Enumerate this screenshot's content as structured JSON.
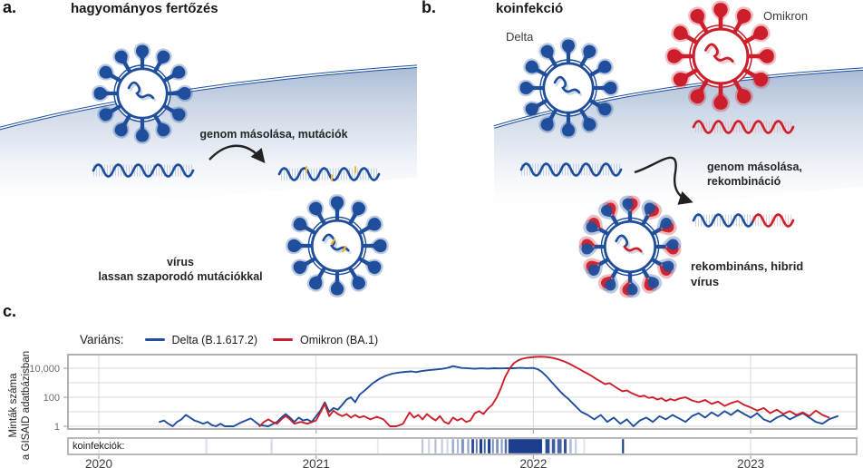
{
  "panel_a": {
    "label": "a.",
    "title": "hagyományos fertőzés",
    "annotation_copy": "genom másolása, mutációk",
    "result_line1": "vírus",
    "result_line2": "lassan szaporodó mutációkkal"
  },
  "panel_b": {
    "label": "b.",
    "title": "koinfekció",
    "virus1_label": "Delta",
    "virus2_label": "Omikron",
    "annotation_copy_line1": "genom másolása,",
    "annotation_copy_line2": "rekombináció",
    "result_line1": "rekombináns, hibrid",
    "result_line2": "vírus"
  },
  "panel_c": {
    "label": "c."
  },
  "colors": {
    "blue": "#1f4e9c",
    "red": "#cc1f2b",
    "membrane": "#1d4e9e",
    "membrane_fill_top": "#9aafcd",
    "yellow": "#f2b632",
    "wave_hatch_blue": "#9fb4d6",
    "wave_hatch_red": "#e8a9ad",
    "squiggle_shadow": "#c3cede",
    "grid": "#d9d9d9",
    "plot_border": "#a8a8a8",
    "tick_text": "#6b6b6b",
    "axis_text": "#3c3c3c",
    "coinfection_mark": "#1c3e8e",
    "arrow": "#222222"
  },
  "chart_data": {
    "type": "line",
    "legend_title": "Variáns:",
    "ylabel_line1": "Minták száma",
    "ylabel_line2": "a GISAID adatbázisban",
    "coinfections_label": "koinfekciók:",
    "y_scale": "log",
    "ylim": [
      1,
      100000
    ],
    "y_ticks": [
      1,
      100,
      10000
    ],
    "y_tick_labels": [
      "1",
      "100",
      "10,000"
    ],
    "x_ticks": [
      2020,
      2021,
      2022,
      2023
    ],
    "grid": true,
    "legend_position": "top",
    "series": [
      {
        "name": "Delta (B.1.617.2)",
        "color": "#1f4e9c",
        "points": [
          [
            2020.28,
            2
          ],
          [
            2020.3,
            2.5
          ],
          [
            2020.32,
            1.5
          ],
          [
            2020.34,
            1
          ],
          [
            2020.36,
            2
          ],
          [
            2020.38,
            3
          ],
          [
            2020.4,
            6
          ],
          [
            2020.42,
            4
          ],
          [
            2020.44,
            2.5
          ],
          [
            2020.46,
            2
          ],
          [
            2020.48,
            1.5
          ],
          [
            2020.5,
            2
          ],
          [
            2020.52,
            1.2
          ],
          [
            2020.54,
            1
          ],
          [
            2020.56,
            1.5
          ],
          [
            2020.58,
            1
          ],
          [
            2020.62,
            1
          ],
          [
            2020.66,
            2
          ],
          [
            2020.7,
            3.5
          ],
          [
            2020.72,
            2
          ],
          [
            2020.74,
            1.2
          ],
          [
            2020.78,
            1
          ],
          [
            2020.82,
            2
          ],
          [
            2020.84,
            4
          ],
          [
            2020.86,
            7
          ],
          [
            2020.88,
            4
          ],
          [
            2020.9,
            2
          ],
          [
            2020.92,
            4
          ],
          [
            2020.94,
            2.5
          ],
          [
            2020.96,
            3
          ],
          [
            2020.98,
            2
          ],
          [
            2021.0,
            5
          ],
          [
            2021.02,
            12
          ],
          [
            2021.04,
            45
          ],
          [
            2021.06,
            10
          ],
          [
            2021.08,
            18
          ],
          [
            2021.1,
            14
          ],
          [
            2021.12,
            30
          ],
          [
            2021.14,
            70
          ],
          [
            2021.16,
            100
          ],
          [
            2021.18,
            45
          ],
          [
            2021.2,
            150
          ],
          [
            2021.23,
            350
          ],
          [
            2021.26,
            900
          ],
          [
            2021.29,
            1800
          ],
          [
            2021.32,
            3000
          ],
          [
            2021.35,
            4200
          ],
          [
            2021.38,
            5000
          ],
          [
            2021.41,
            5600
          ],
          [
            2021.44,
            6000
          ],
          [
            2021.46,
            5400
          ],
          [
            2021.48,
            6200
          ],
          [
            2021.5,
            6800
          ],
          [
            2021.52,
            7400
          ],
          [
            2021.55,
            8200
          ],
          [
            2021.58,
            9000
          ],
          [
            2021.61,
            11000
          ],
          [
            2021.63,
            14000
          ],
          [
            2021.65,
            12000
          ],
          [
            2021.67,
            10500
          ],
          [
            2021.7,
            9800
          ],
          [
            2021.73,
            9200
          ],
          [
            2021.76,
            9800
          ],
          [
            2021.79,
            9400
          ],
          [
            2021.82,
            10000
          ],
          [
            2021.85,
            9700
          ],
          [
            2021.88,
            10200
          ],
          [
            2021.91,
            10000
          ],
          [
            2021.94,
            10600
          ],
          [
            2021.97,
            10200
          ],
          [
            2022.0,
            10400
          ],
          [
            2022.02,
            8500
          ],
          [
            2022.04,
            5500
          ],
          [
            2022.06,
            2800
          ],
          [
            2022.08,
            1300
          ],
          [
            2022.1,
            600
          ],
          [
            2022.12,
            280
          ],
          [
            2022.14,
            140
          ],
          [
            2022.16,
            80
          ],
          [
            2022.18,
            40
          ],
          [
            2022.2,
            20
          ],
          [
            2022.22,
            10
          ],
          [
            2022.25,
            6
          ],
          [
            2022.28,
            3
          ],
          [
            2022.31,
            6
          ],
          [
            2022.34,
            2
          ],
          [
            2022.37,
            4
          ],
          [
            2022.4,
            1.5
          ],
          [
            2022.43,
            3
          ],
          [
            2022.46,
            1
          ],
          [
            2022.49,
            2.5
          ],
          [
            2022.52,
            4
          ],
          [
            2022.55,
            2
          ],
          [
            2022.58,
            5
          ],
          [
            2022.61,
            3
          ],
          [
            2022.64,
            6
          ],
          [
            2022.67,
            3.5
          ],
          [
            2022.7,
            2
          ],
          [
            2022.73,
            5
          ],
          [
            2022.76,
            8
          ],
          [
            2022.79,
            4
          ],
          [
            2022.82,
            9
          ],
          [
            2022.85,
            5
          ],
          [
            2022.88,
            11
          ],
          [
            2022.91,
            6
          ],
          [
            2022.94,
            13
          ],
          [
            2022.97,
            7
          ],
          [
            2023.0,
            4
          ],
          [
            2023.03,
            8
          ],
          [
            2023.06,
            3
          ],
          [
            2023.09,
            2
          ],
          [
            2023.12,
            4
          ],
          [
            2023.15,
            6
          ],
          [
            2023.18,
            3
          ],
          [
            2023.21,
            5
          ],
          [
            2023.24,
            8
          ],
          [
            2023.27,
            4
          ],
          [
            2023.3,
            2
          ],
          [
            2023.33,
            1.5
          ],
          [
            2023.36,
            3
          ],
          [
            2023.4,
            5
          ]
        ]
      },
      {
        "name": "Omikron (BA.1)",
        "color": "#cc1f2b",
        "points": [
          [
            2020.74,
            1
          ],
          [
            2020.76,
            2
          ],
          [
            2020.78,
            3
          ],
          [
            2020.8,
            2
          ],
          [
            2020.82,
            1.5
          ],
          [
            2020.84,
            3
          ],
          [
            2020.86,
            5
          ],
          [
            2020.88,
            3
          ],
          [
            2020.9,
            1.5
          ],
          [
            2020.93,
            2
          ],
          [
            2020.96,
            1.5
          ],
          [
            2021.0,
            2.5
          ],
          [
            2021.02,
            9
          ],
          [
            2021.04,
            35
          ],
          [
            2021.06,
            5
          ],
          [
            2021.08,
            12
          ],
          [
            2021.1,
            7
          ],
          [
            2021.12,
            5
          ],
          [
            2021.14,
            7
          ],
          [
            2021.16,
            4
          ],
          [
            2021.18,
            6
          ],
          [
            2021.2,
            4
          ],
          [
            2021.22,
            5
          ],
          [
            2021.25,
            3
          ],
          [
            2021.28,
            4.5
          ],
          [
            2021.31,
            3
          ],
          [
            2021.34,
            1
          ],
          [
            2021.37,
            1
          ],
          [
            2021.4,
            1.5
          ],
          [
            2021.43,
            9
          ],
          [
            2021.45,
            4
          ],
          [
            2021.47,
            6
          ],
          [
            2021.49,
            3
          ],
          [
            2021.51,
            7
          ],
          [
            2021.53,
            4
          ],
          [
            2021.55,
            2.5
          ],
          [
            2021.57,
            5
          ],
          [
            2021.59,
            2
          ],
          [
            2021.61,
            1.5
          ],
          [
            2021.63,
            4
          ],
          [
            2021.65,
            2.5
          ],
          [
            2021.67,
            3.5
          ],
          [
            2021.69,
            2
          ],
          [
            2021.71,
            2.5
          ],
          [
            2021.73,
            8
          ],
          [
            2021.75,
            11
          ],
          [
            2021.77,
            7
          ],
          [
            2021.79,
            16
          ],
          [
            2021.81,
            30
          ],
          [
            2021.83,
            90
          ],
          [
            2021.85,
            400
          ],
          [
            2021.87,
            2500
          ],
          [
            2021.89,
            9000
          ],
          [
            2021.91,
            22000
          ],
          [
            2021.93,
            35000
          ],
          [
            2021.95,
            45000
          ],
          [
            2021.97,
            52000
          ],
          [
            2021.99,
            57000
          ],
          [
            2022.01,
            60000
          ],
          [
            2022.03,
            62000
          ],
          [
            2022.05,
            61000
          ],
          [
            2022.07,
            57000
          ],
          [
            2022.09,
            51000
          ],
          [
            2022.11,
            43000
          ],
          [
            2022.13,
            34000
          ],
          [
            2022.15,
            26000
          ],
          [
            2022.17,
            19000
          ],
          [
            2022.19,
            13000
          ],
          [
            2022.21,
            9000
          ],
          [
            2022.23,
            6000
          ],
          [
            2022.25,
            4200
          ],
          [
            2022.27,
            2800
          ],
          [
            2022.29,
            1800
          ],
          [
            2022.31,
            1200
          ],
          [
            2022.33,
            800
          ],
          [
            2022.35,
            950
          ],
          [
            2022.37,
            600
          ],
          [
            2022.39,
            380
          ],
          [
            2022.41,
            260
          ],
          [
            2022.43,
            300
          ],
          [
            2022.45,
            200
          ],
          [
            2022.47,
            150
          ],
          [
            2022.49,
            110
          ],
          [
            2022.51,
            130
          ],
          [
            2022.53,
            90
          ],
          [
            2022.55,
            100
          ],
          [
            2022.57,
            70
          ],
          [
            2022.59,
            85
          ],
          [
            2022.61,
            55
          ],
          [
            2022.63,
            75
          ],
          [
            2022.65,
            60
          ],
          [
            2022.67,
            80
          ],
          [
            2022.7,
            100
          ],
          [
            2022.73,
            60
          ],
          [
            2022.76,
            45
          ],
          [
            2022.79,
            65
          ],
          [
            2022.82,
            35
          ],
          [
            2022.85,
            50
          ],
          [
            2022.88,
            25
          ],
          [
            2022.91,
            40
          ],
          [
            2022.94,
            55
          ],
          [
            2022.97,
            30
          ],
          [
            2023.0,
            20
          ],
          [
            2023.03,
            12
          ],
          [
            2023.06,
            18
          ],
          [
            2023.09,
            8
          ],
          [
            2023.12,
            14
          ],
          [
            2023.15,
            7
          ],
          [
            2023.18,
            11
          ],
          [
            2023.21,
            6
          ],
          [
            2023.24,
            9
          ],
          [
            2023.27,
            5
          ],
          [
            2023.3,
            12
          ],
          [
            2023.33,
            6
          ],
          [
            2023.36,
            4
          ]
        ]
      }
    ],
    "coinfection_marks": [
      [
        2020.49,
        0.01,
        0.15
      ],
      [
        2020.79,
        0.01,
        0.18
      ],
      [
        2021.28,
        0.008,
        0.1
      ],
      [
        2021.485,
        0.009,
        0.3
      ],
      [
        2021.515,
        0.009,
        0.22
      ],
      [
        2021.545,
        0.009,
        0.35
      ],
      [
        2021.575,
        0.009,
        0.28
      ],
      [
        2021.6,
        0.009,
        0.22
      ],
      [
        2021.625,
        0.01,
        0.45
      ],
      [
        2021.648,
        0.009,
        0.38
      ],
      [
        2021.668,
        0.013,
        0.55
      ],
      [
        2021.695,
        0.01,
        0.45
      ],
      [
        2021.715,
        0.012,
        0.92
      ],
      [
        2021.735,
        0.008,
        0.7
      ],
      [
        2021.752,
        0.013,
        1
      ],
      [
        2021.772,
        0.008,
        0.85
      ],
      [
        2021.79,
        0.013,
        1
      ],
      [
        2021.81,
        0.008,
        0.6
      ],
      [
        2021.828,
        0.012,
        0.55
      ],
      [
        2021.85,
        0.009,
        0.5
      ],
      [
        2021.868,
        0.01,
        0.75
      ],
      [
        2021.885,
        0.155,
        1
      ],
      [
        2022.055,
        0.02,
        0.92
      ],
      [
        2022.085,
        0.015,
        0.85
      ],
      [
        2022.11,
        0.02,
        0.8
      ],
      [
        2022.14,
        0.013,
        0.9
      ],
      [
        2022.165,
        0.012,
        0.35
      ],
      [
        2022.19,
        0.01,
        0.25
      ],
      [
        2022.23,
        0.008,
        0.15
      ],
      [
        2022.408,
        0.009,
        1
      ]
    ]
  }
}
